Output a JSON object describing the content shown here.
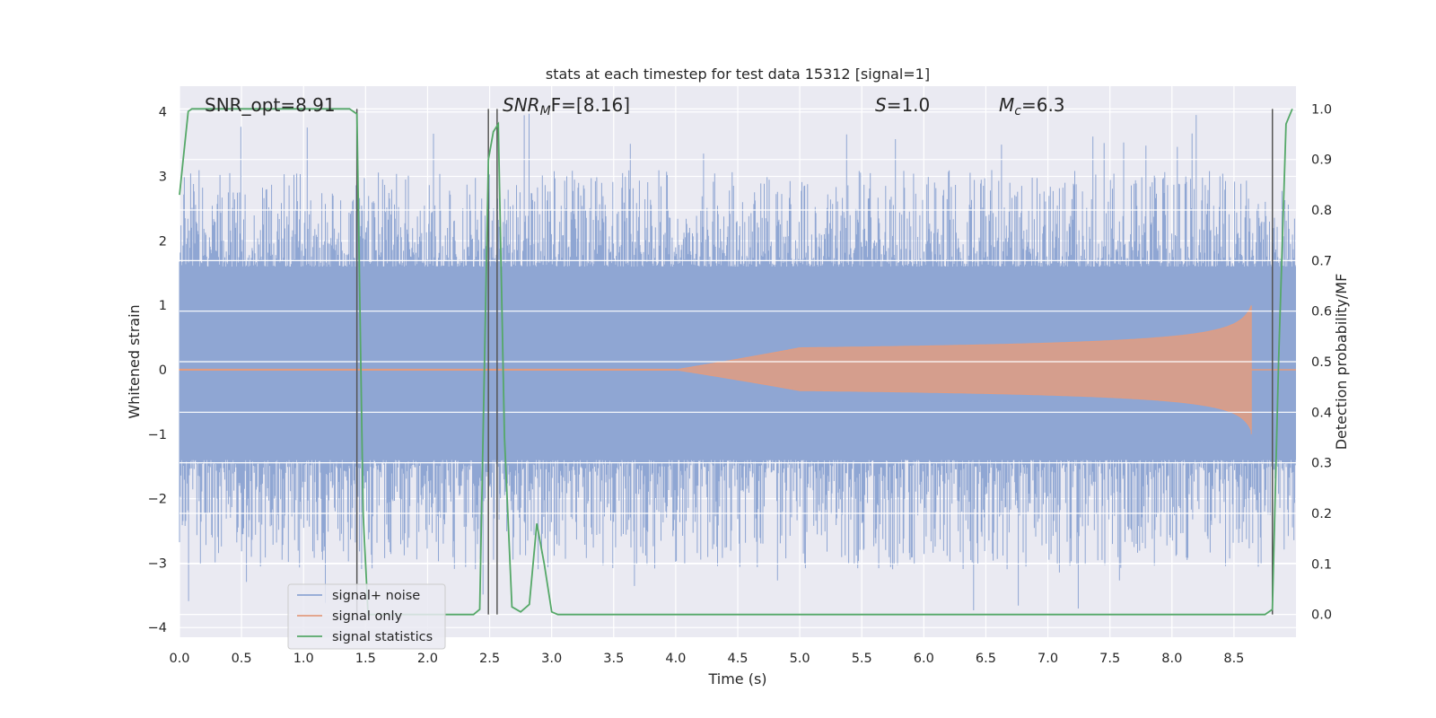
{
  "chart_data": {
    "type": "line",
    "title": "stats at each timestep for test data 15312 [signal=1]",
    "xlabel": "Time (s)",
    "ylabel_left": "Whitened strain",
    "ylabel_right": "Detection probability/MF",
    "xlim": [
      0.0,
      9.0
    ],
    "ylim_left": [
      -4.15,
      4.4
    ],
    "ylim_right": [
      -0.045,
      1.045
    ],
    "x_ticks": [
      "0.0",
      "0.5",
      "1.0",
      "1.5",
      "2.0",
      "2.5",
      "3.0",
      "3.5",
      "4.0",
      "4.5",
      "5.0",
      "5.5",
      "6.0",
      "6.5",
      "7.0",
      "7.5",
      "8.0",
      "8.5"
    ],
    "y_ticks_left": [
      "−4",
      "−3",
      "−2",
      "−1",
      "0",
      "1",
      "2",
      "3",
      "4"
    ],
    "y_ticks_right": [
      "0.0",
      "0.1",
      "0.2",
      "0.3",
      "0.4",
      "0.5",
      "0.6",
      "0.7",
      "0.8",
      "0.9",
      "1.0"
    ],
    "grid": true,
    "legend_position": "lower-left",
    "annotations": {
      "snr_opt": "SNR_opt=8.91",
      "snr_mf_main": "SNR",
      "snr_mf_sub": "M",
      "snr_mf_rest": "F=[8.16]",
      "s_main": "S",
      "s_rest": "=1.0",
      "mc_main": "M",
      "mc_sub": "c",
      "mc_rest": "=6.3"
    },
    "vertical_lines_x": [
      1.43,
      2.49,
      2.56,
      8.81
    ],
    "series": [
      {
        "name": "signal+ noise",
        "axis": "left",
        "color": "#8fa6d3",
        "description_values": {
          "typical_envelope": [
            -1.4,
            1.6
          ],
          "peak_max": 4.0,
          "peak_min": -3.75
        }
      },
      {
        "name": "signal only",
        "axis": "left",
        "color": "#e29c80",
        "chirp": {
          "start_time": 4.0,
          "merger_time": 8.64,
          "peak_amplitude": 1.0,
          "peak_min": -1.0
        }
      },
      {
        "name": "signal statistics",
        "axis": "right",
        "color": "#55a868",
        "x": [
          0.0,
          0.07,
          0.1,
          0.2,
          0.5,
          1.0,
          1.3,
          1.37,
          1.43,
          1.48,
          1.52,
          1.6,
          2.0,
          2.37,
          2.42,
          2.49,
          2.53,
          2.57,
          2.62,
          2.68,
          2.75,
          2.82,
          2.88,
          2.94,
          3.0,
          3.05,
          3.5,
          4.0,
          5.0,
          6.0,
          7.0,
          8.0,
          8.5,
          8.75,
          8.81,
          8.86,
          8.92,
          8.97
        ],
        "y": [
          0.83,
          0.995,
          1.0,
          1.0,
          1.0,
          1.0,
          1.0,
          1.0,
          0.99,
          0.2,
          0.0,
          0.0,
          0.0,
          0.0,
          0.01,
          0.9,
          0.955,
          0.97,
          0.35,
          0.015,
          0.005,
          0.02,
          0.18,
          0.1,
          0.005,
          0.0,
          0.0,
          0.0,
          0.0,
          0.0,
          0.0,
          0.0,
          0.0,
          0.0,
          0.01,
          0.5,
          0.97,
          1.0
        ]
      }
    ]
  }
}
